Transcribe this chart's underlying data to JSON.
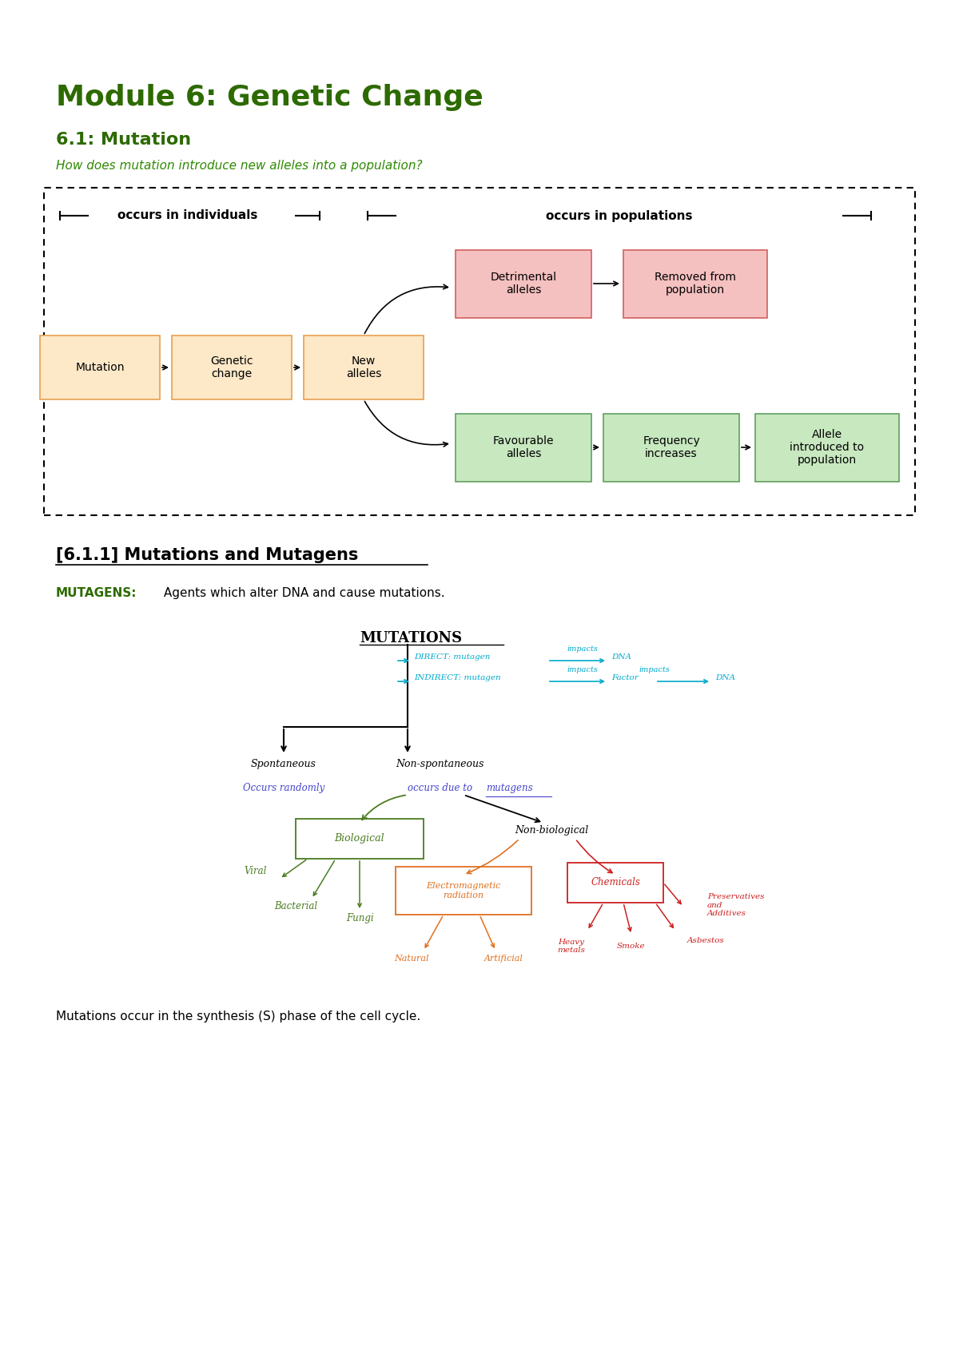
{
  "title": "Module 6: Genetic Change",
  "subtitle": "6.1: Mutation",
  "question": "How does mutation introduce new alleles into a population?",
  "title_color": "#2d6a00",
  "subtitle_color": "#2d6a00",
  "question_color": "#2d8a00",
  "bg_color": "#ffffff",
  "box_orange_bg": "#fde8c8",
  "box_orange_border": "#e8a050",
  "box_pink_bg": "#f5c0c0",
  "box_pink_border": "#d06060",
  "box_green_bg": "#c8e8c0",
  "box_green_border": "#60a060",
  "section_heading": "[6.1.1] Mutations and Mutagens",
  "mutagens_label": "MUTAGENS:",
  "mutagens_text": " Agents which alter DNA and cause mutations.",
  "footer_text": "Mutations occur in the synthesis (S) phase of the cell cycle."
}
